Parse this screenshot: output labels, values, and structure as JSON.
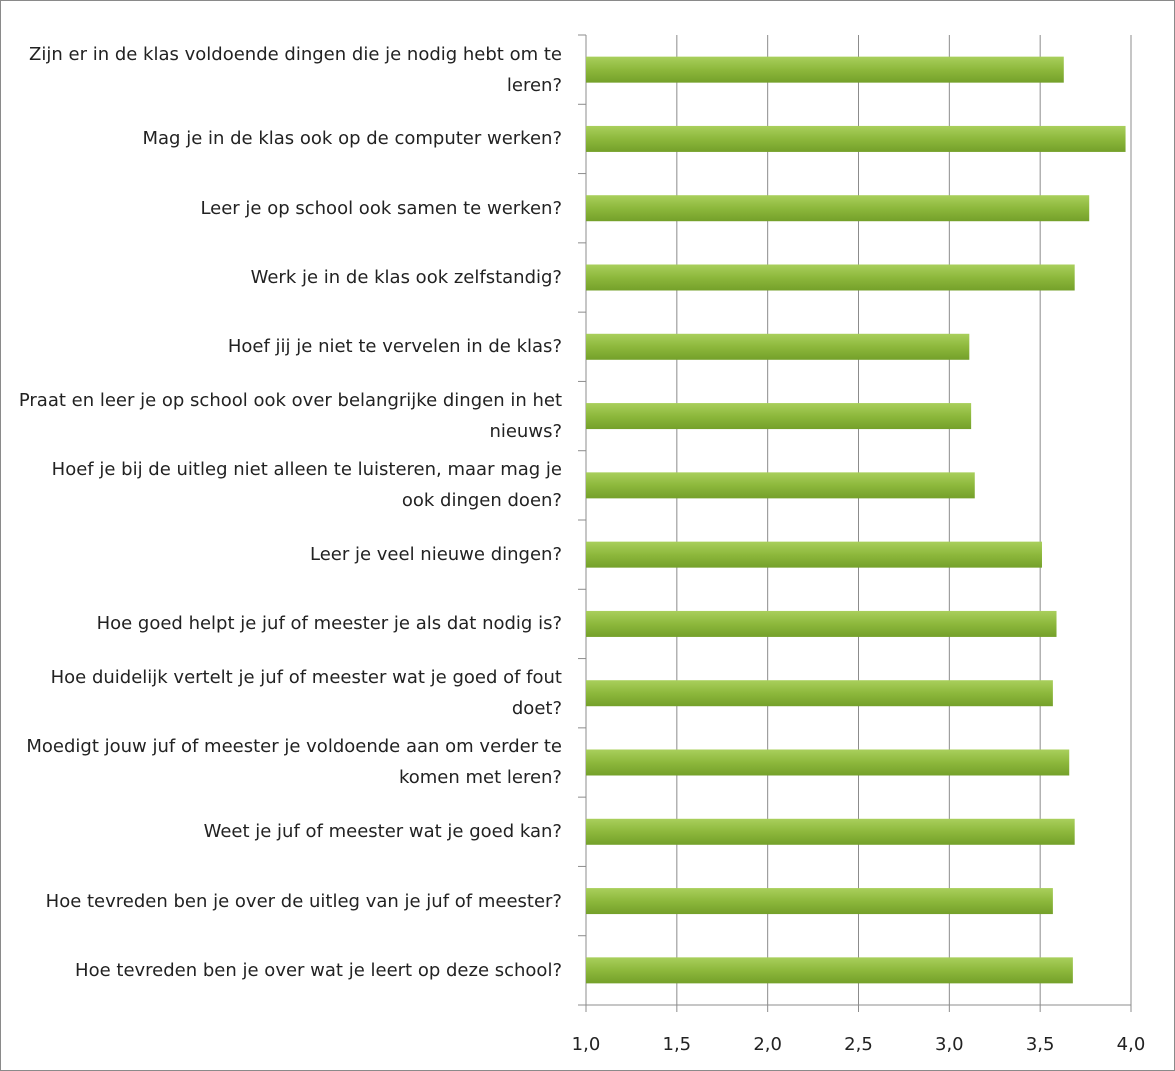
{
  "chart_data": {
    "type": "barh",
    "categories": [
      "Zijn er in de klas voldoende dingen die je nodig hebt om te leren?",
      "Mag je in de klas ook op de computer werken?",
      "Leer je op school ook samen te werken?",
      "Werk je in de klas ook zelfstandig?",
      "Hoef jij je niet te vervelen in de klas?",
      "Praat en leer je op school ook over belangrijke dingen in het nieuws?",
      "Hoef je bij de uitleg niet alleen te luisteren, maar mag je ook dingen doen?",
      "Leer je veel nieuwe dingen?",
      "Hoe goed helpt je juf of meester je als dat nodig is?",
      "Hoe duidelijk vertelt je juf of meester wat je goed of fout doet?",
      "Moedigt jouw juf of meester je voldoende aan om verder te komen met leren?",
      "Weet je juf of meester wat je goed kan?",
      "Hoe tevreden ben je over de uitleg van je juf of meester?",
      "Hoe tevreden ben je over wat je leert op deze school?"
    ],
    "values": [
      3.63,
      3.97,
      3.77,
      3.69,
      3.11,
      3.12,
      3.14,
      3.51,
      3.59,
      3.57,
      3.66,
      3.69,
      3.57,
      3.68
    ],
    "color": "#8db83c",
    "xlim": [
      1,
      4
    ],
    "xticks": [
      {
        "value": 1,
        "label": "1,0"
      },
      {
        "value": 1.5,
        "label": "1,5"
      },
      {
        "value": 2,
        "label": "2,0"
      },
      {
        "value": 2.5,
        "label": "2,5"
      },
      {
        "value": 3,
        "label": "3,0"
      },
      {
        "value": 3.5,
        "label": "3,5"
      },
      {
        "value": 4,
        "label": "4,0"
      }
    ],
    "grid": true
  }
}
